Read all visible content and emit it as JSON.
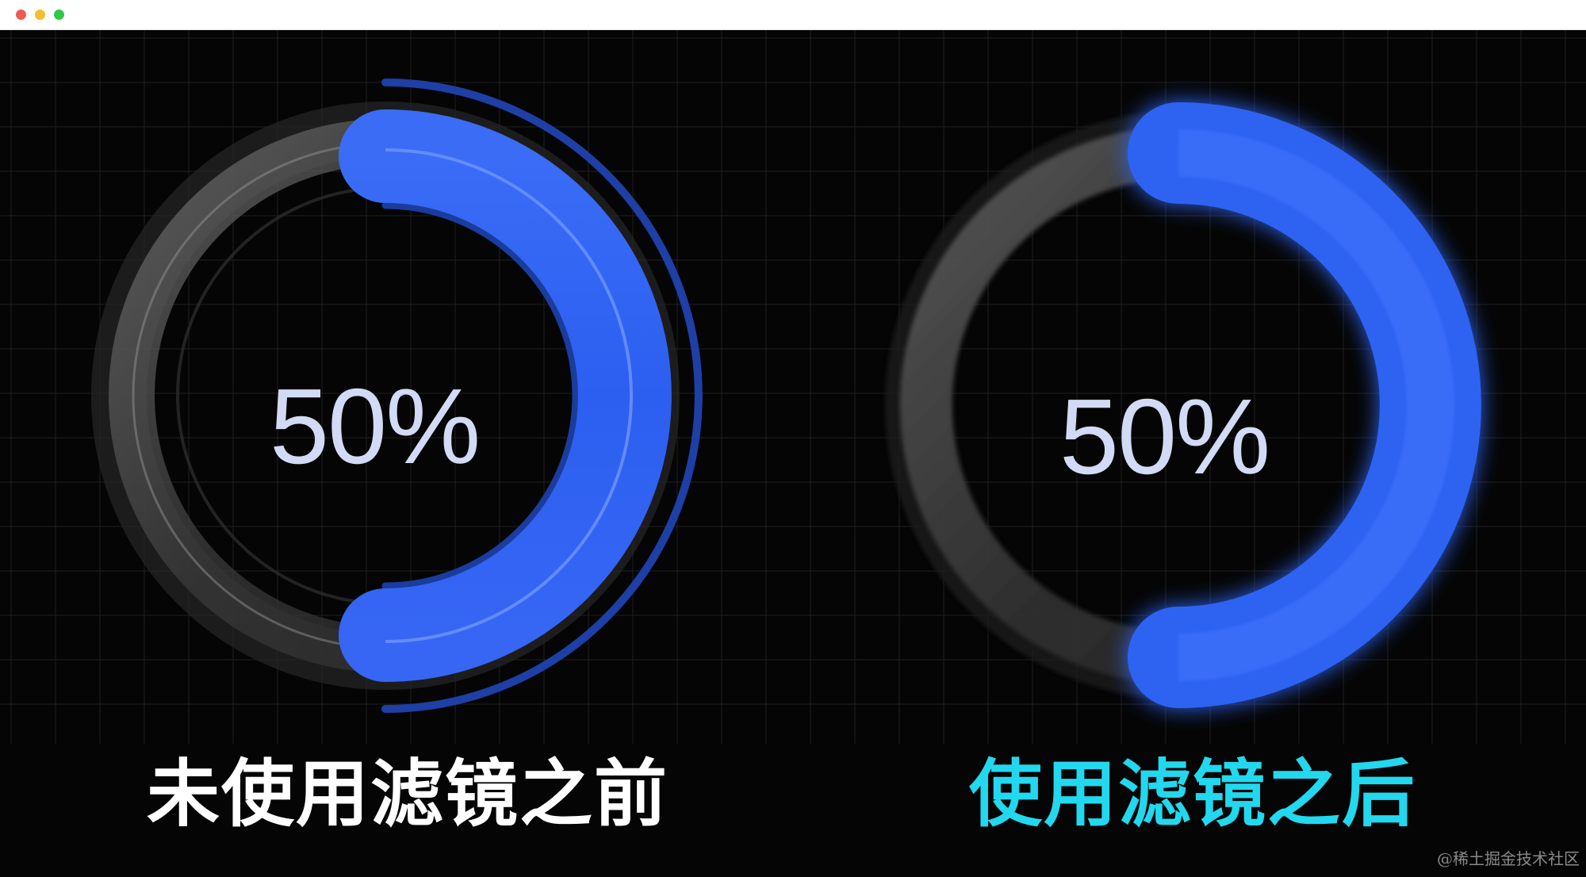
{
  "window": {
    "traffic_lights": [
      "close",
      "minimize",
      "zoom"
    ]
  },
  "panels": {
    "left": {
      "progress": 0.5,
      "value_text": "50%",
      "caption": "未使用滤镜之前",
      "caption_color": "#ffffff",
      "filter_applied": false
    },
    "right": {
      "progress": 0.5,
      "value_text": "50%",
      "caption": "使用滤镜之后",
      "caption_color": "#22d8ee",
      "filter_applied": true
    }
  },
  "colors": {
    "background": "#050505",
    "accent_blue": "#2f63f2",
    "accent_blue_light": "#5b86ff",
    "dark_blue": "#1a3fa8",
    "track_grey": "#5a5a5a",
    "value_text": "#d3daf5",
    "grid": "#1e1e1e"
  },
  "watermark": "@稀土掘金技术社区"
}
